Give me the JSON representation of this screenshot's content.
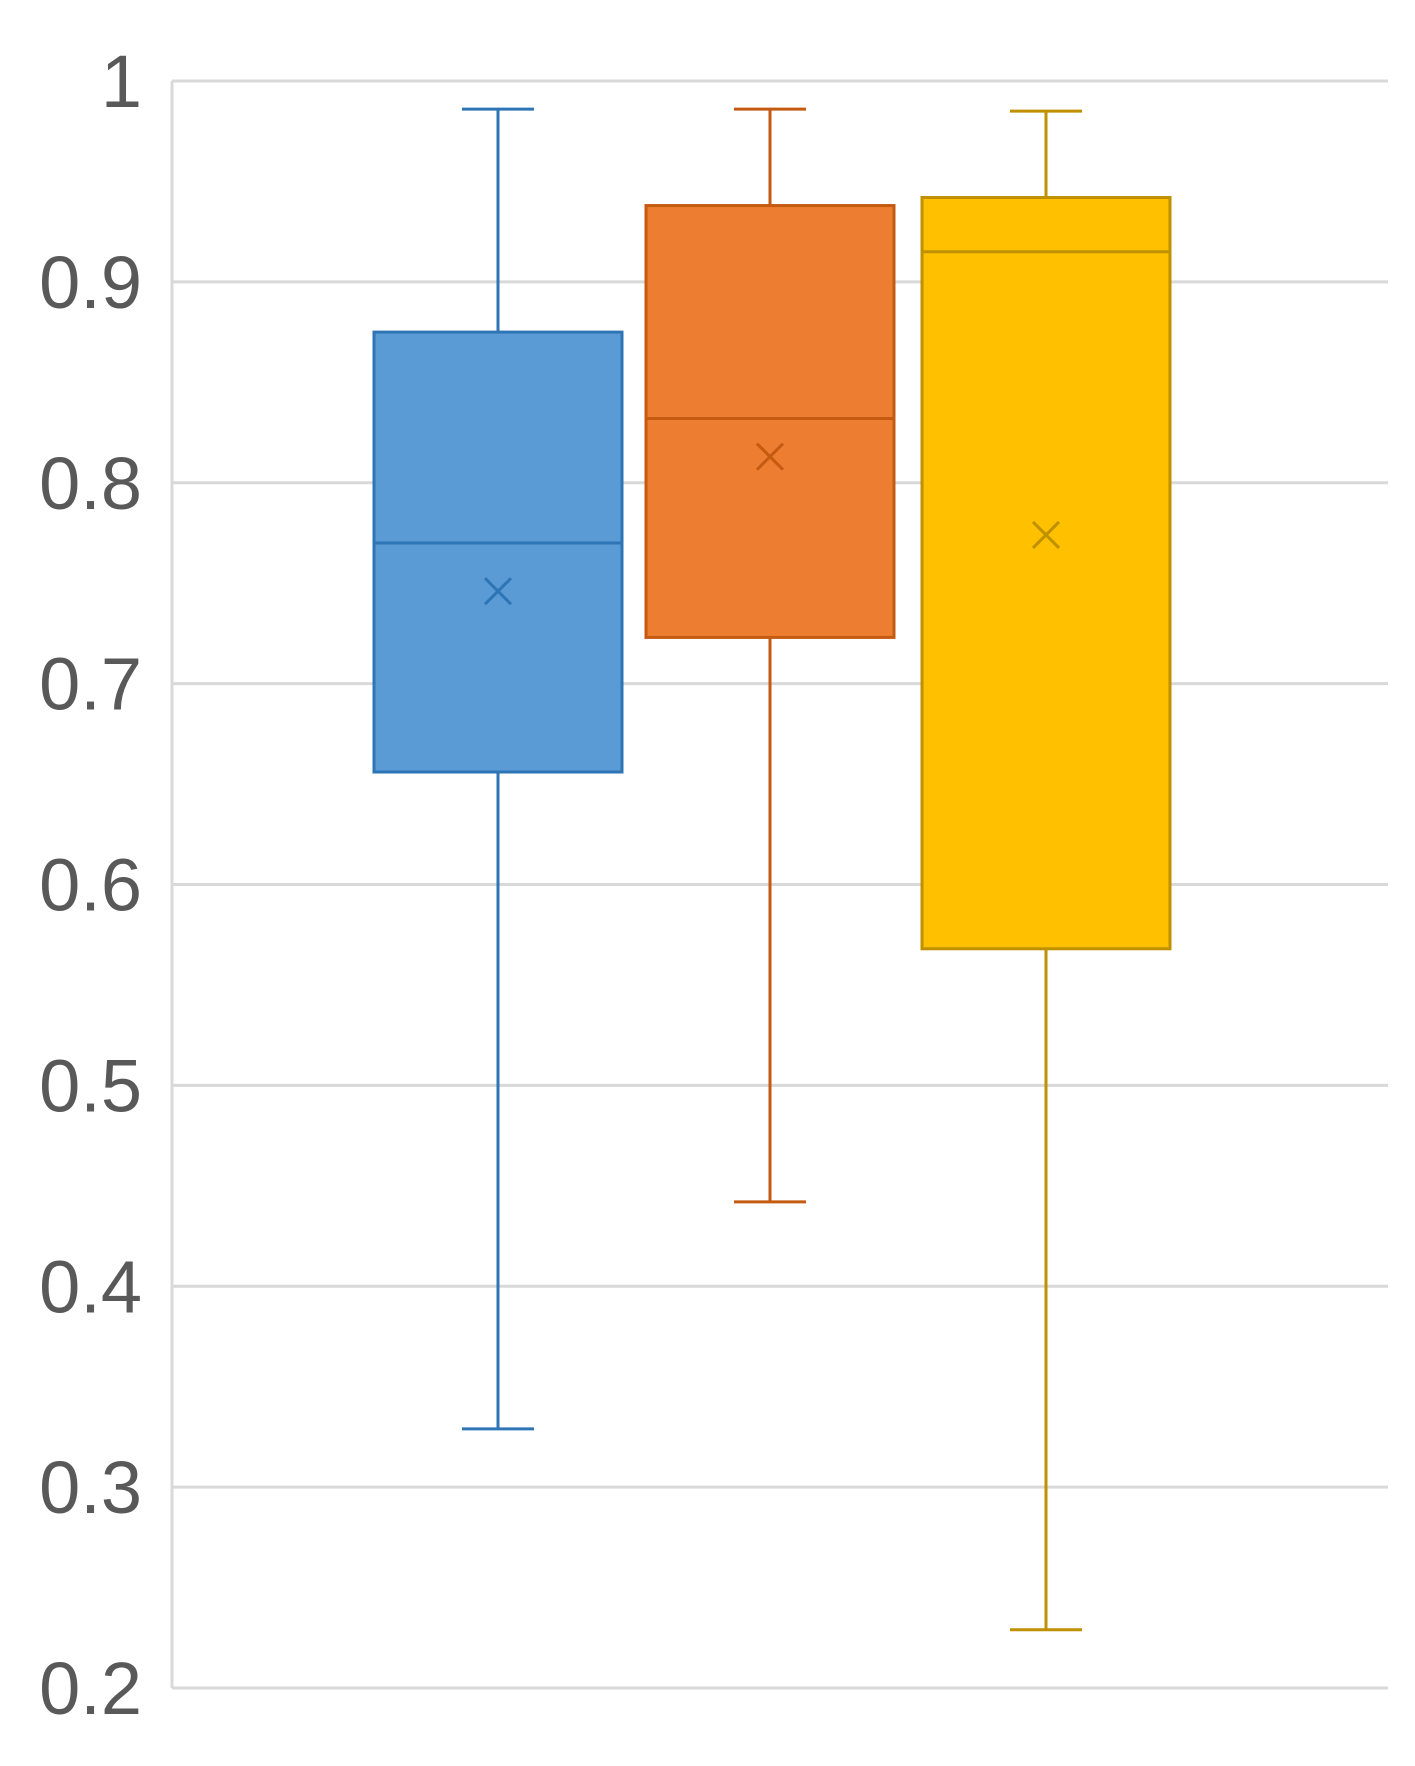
{
  "chart_data": {
    "type": "box",
    "title": "",
    "xlabel": "",
    "ylabel": "",
    "ylim": [
      0.2,
      1.0
    ],
    "yticks": [
      0.2,
      0.3,
      0.4,
      0.5,
      0.6,
      0.7,
      0.8,
      0.9,
      1.0
    ],
    "ytick_labels": [
      "0.2",
      "0.3",
      "0.4",
      "0.5",
      "0.6",
      "0.7",
      "0.8",
      "0.9",
      "1"
    ],
    "grid": true,
    "legend": "none",
    "series": [
      {
        "fill": "#5b9bd5",
        "stroke": "#2e75b6",
        "min": 0.329,
        "q1": 0.656,
        "median": 0.77,
        "mean": 0.746,
        "q3": 0.875,
        "max": 0.986
      },
      {
        "fill": "#ed7d31",
        "stroke": "#c55a11",
        "min": 0.442,
        "q1": 0.723,
        "median": 0.832,
        "mean": 0.813,
        "q3": 0.938,
        "max": 0.986
      },
      {
        "fill": "#ffc000",
        "stroke": "#bf9000",
        "min": 0.229,
        "q1": 0.568,
        "median": 0.915,
        "mean": 0.774,
        "q3": 0.942,
        "max": 0.985
      }
    ]
  }
}
